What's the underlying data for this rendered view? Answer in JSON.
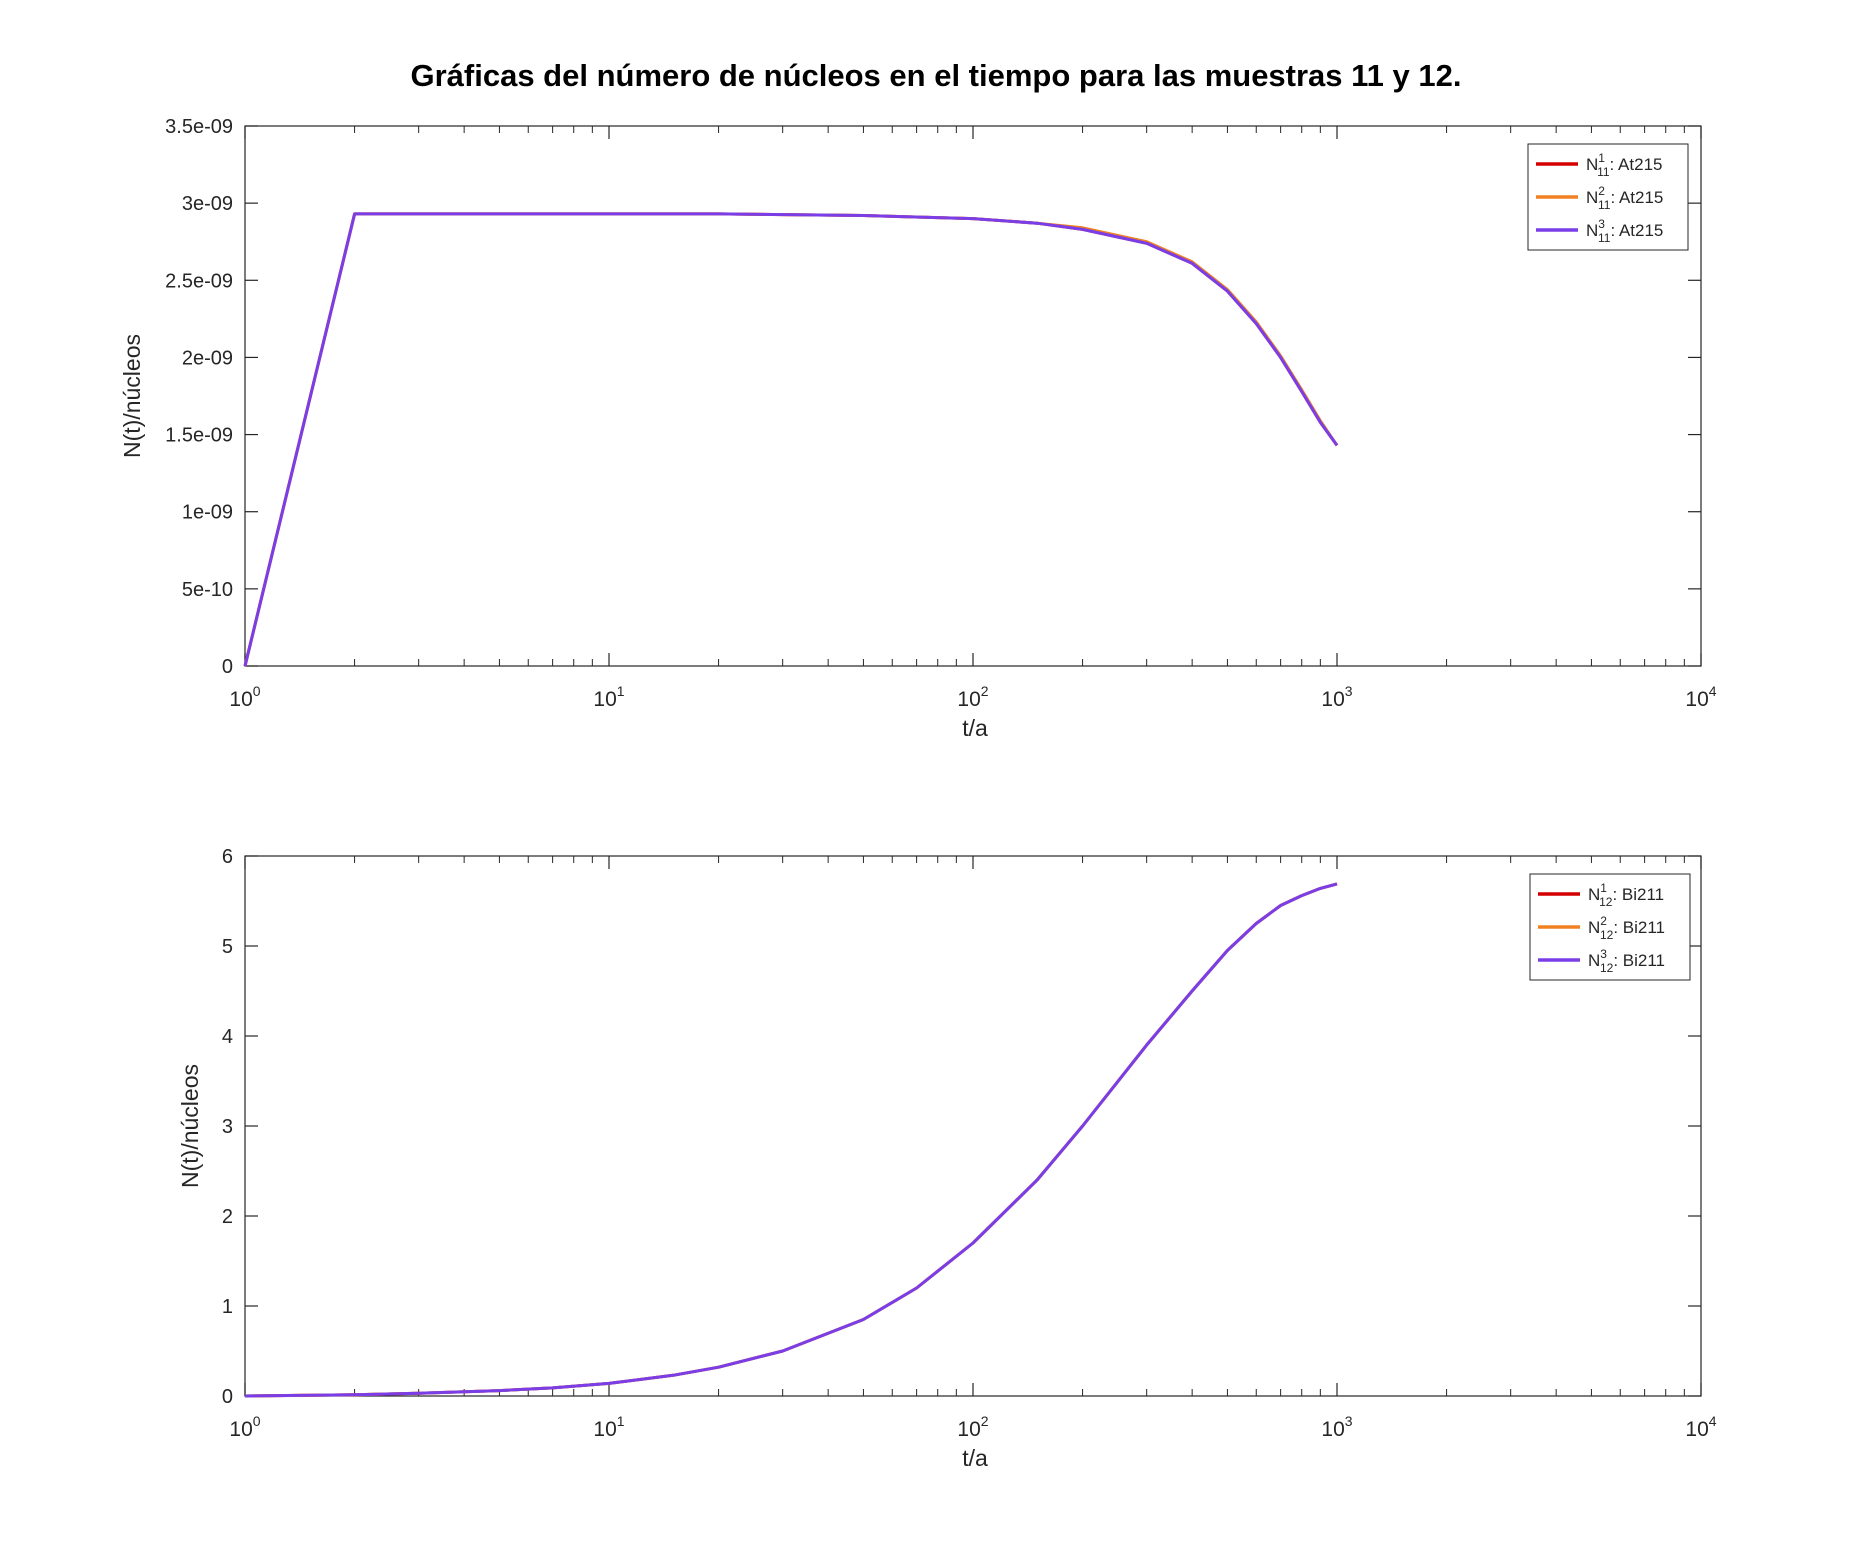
{
  "figure": {
    "title": "Gráficas del número de núcleos en el tiempo para las muestras 11 y 12."
  },
  "chart_data": [
    {
      "type": "line",
      "title": "",
      "xlabel": "t/a",
      "ylabel": "N(t)/núcleos",
      "xscale": "log",
      "xlim": [
        1,
        10000
      ],
      "ylim": [
        0,
        3.5e-09
      ],
      "xticks": [
        1,
        10,
        100,
        1000,
        10000
      ],
      "xtick_labels": [
        {
          "base": "10",
          "exp": "0"
        },
        {
          "base": "10",
          "exp": "1"
        },
        {
          "base": "10",
          "exp": "2"
        },
        {
          "base": "10",
          "exp": "3"
        },
        {
          "base": "10",
          "exp": "4"
        }
      ],
      "yticks": [
        0,
        5e-10,
        1e-09,
        1.5e-09,
        2e-09,
        2.5e-09,
        3e-09,
        3.5e-09
      ],
      "ytick_labels": [
        "0",
        "5e-10",
        "1e-09",
        "1.5e-09",
        "2e-09",
        "2.5e-09",
        "3e-09",
        "3.5e-09"
      ],
      "grid": false,
      "legend_position": "top-right",
      "series": [
        {
          "name_base": "N",
          "name_sub": "11",
          "name_sup": "1",
          "name_suffix": ": At215",
          "color": "#d40000",
          "x": [
            1,
            2,
            5,
            10,
            20,
            50,
            100,
            150,
            200,
            300,
            400,
            500,
            600,
            700,
            800,
            900,
            1000
          ],
          "y": [
            0,
            2.93e-09,
            2.93e-09,
            2.93e-09,
            2.93e-09,
            2.92e-09,
            2.9e-09,
            2.87e-09,
            2.83e-09,
            2.74e-09,
            2.61e-09,
            2.43e-09,
            2.22e-09,
            2e-09,
            1.78e-09,
            1.58e-09,
            1.43e-09
          ]
        },
        {
          "name_base": "N",
          "name_sub": "11",
          "name_sup": "2",
          "name_suffix": ": At215",
          "color": "#f08020",
          "x": [
            1,
            2,
            5,
            10,
            20,
            50,
            100,
            150,
            200,
            300,
            400,
            500,
            600,
            700,
            800,
            900,
            1000
          ],
          "y": [
            0,
            2.93e-09,
            2.93e-09,
            2.93e-09,
            2.93e-09,
            2.92e-09,
            2.9e-09,
            2.87e-09,
            2.84e-09,
            2.75e-09,
            2.62e-09,
            2.44e-09,
            2.23e-09,
            2.01e-09,
            1.79e-09,
            1.59e-09,
            1.43e-09
          ]
        },
        {
          "name_base": "N",
          "name_sub": "11",
          "name_sup": "3",
          "name_suffix": ": At215",
          "color": "#7a3ee8",
          "x": [
            1,
            2,
            5,
            10,
            20,
            50,
            100,
            150,
            200,
            300,
            400,
            500,
            600,
            700,
            800,
            900,
            1000
          ],
          "y": [
            0,
            2.93e-09,
            2.93e-09,
            2.93e-09,
            2.93e-09,
            2.92e-09,
            2.9e-09,
            2.87e-09,
            2.83e-09,
            2.74e-09,
            2.61e-09,
            2.43e-09,
            2.22e-09,
            2e-09,
            1.78e-09,
            1.58e-09,
            1.43e-09
          ]
        }
      ]
    },
    {
      "type": "line",
      "title": "",
      "xlabel": "t/a",
      "ylabel": "N(t)/núcleos",
      "xscale": "log",
      "xlim": [
        1,
        10000
      ],
      "ylim": [
        0,
        6
      ],
      "xticks": [
        1,
        10,
        100,
        1000,
        10000
      ],
      "xtick_labels": [
        {
          "base": "10",
          "exp": "0"
        },
        {
          "base": "10",
          "exp": "1"
        },
        {
          "base": "10",
          "exp": "2"
        },
        {
          "base": "10",
          "exp": "3"
        },
        {
          "base": "10",
          "exp": "4"
        }
      ],
      "yticks": [
        0,
        1,
        2,
        3,
        4,
        5,
        6
      ],
      "ytick_labels": [
        "0",
        "1",
        "2",
        "3",
        "4",
        "5",
        "6"
      ],
      "grid": false,
      "legend_position": "top-right",
      "series": [
        {
          "name_base": "N",
          "name_sub": "12",
          "name_sup": "1",
          "name_suffix": ": Bi211",
          "color": "#d40000",
          "x": [
            1,
            2,
            3,
            5,
            7,
            10,
            15,
            20,
            30,
            50,
            70,
            100,
            150,
            200,
            300,
            400,
            500,
            600,
            700,
            800,
            900,
            1000
          ],
          "y": [
            0,
            0.015,
            0.03,
            0.06,
            0.09,
            0.14,
            0.23,
            0.32,
            0.5,
            0.85,
            1.2,
            1.7,
            2.4,
            3.0,
            3.9,
            4.5,
            4.95,
            5.25,
            5.45,
            5.56,
            5.64,
            5.69
          ]
        },
        {
          "name_base": "N",
          "name_sub": "12",
          "name_sup": "2",
          "name_suffix": ": Bi211",
          "color": "#f08020",
          "x": [
            1,
            2,
            3,
            5,
            7,
            10,
            15,
            20,
            30,
            50,
            70,
            100,
            150,
            200,
            300,
            400,
            500,
            600,
            700,
            800,
            900,
            1000
          ],
          "y": [
            0,
            0.015,
            0.03,
            0.06,
            0.09,
            0.14,
            0.23,
            0.32,
            0.5,
            0.85,
            1.2,
            1.7,
            2.4,
            3.0,
            3.9,
            4.5,
            4.95,
            5.25,
            5.45,
            5.56,
            5.64,
            5.69
          ]
        },
        {
          "name_base": "N",
          "name_sub": "12",
          "name_sup": "3",
          "name_suffix": ": Bi211",
          "color": "#7a3ee8",
          "x": [
            1,
            2,
            3,
            5,
            7,
            10,
            15,
            20,
            30,
            50,
            70,
            100,
            150,
            200,
            300,
            400,
            500,
            600,
            700,
            800,
            900,
            1000
          ],
          "y": [
            0,
            0.015,
            0.03,
            0.06,
            0.09,
            0.14,
            0.23,
            0.32,
            0.5,
            0.85,
            1.2,
            1.7,
            2.4,
            3.0,
            3.9,
            4.5,
            4.95,
            5.25,
            5.45,
            5.56,
            5.64,
            5.69
          ]
        }
      ]
    }
  ]
}
